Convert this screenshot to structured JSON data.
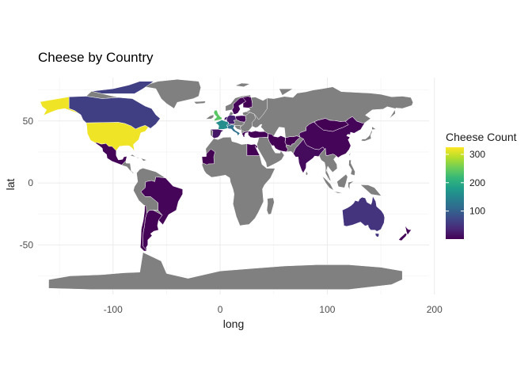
{
  "chart_data": {
    "type": "choropleth map",
    "title": "Cheese by Country",
    "xlabel": "long",
    "ylabel": "lat",
    "xlim": [
      -170,
      195
    ],
    "ylim": [
      -90,
      85
    ],
    "x_ticks": [
      -100,
      0,
      100,
      200
    ],
    "y_ticks": [
      -50,
      0,
      50
    ],
    "x_tick_labels": [
      "-100",
      "0",
      "100",
      "200"
    ],
    "y_tick_labels": [
      "-50",
      "0",
      "50"
    ],
    "grid": true,
    "legend": {
      "title": "Cheese Count",
      "position": "right",
      "min": 1,
      "max": 325,
      "ticks": [
        100,
        200,
        300
      ],
      "tick_labels": [
        "100",
        "200",
        "300"
      ],
      "palette": [
        "#440154",
        "#482878",
        "#3e4989",
        "#31688e",
        "#26828e",
        "#1f9e89",
        "#35b779",
        "#6ece58",
        "#b5de2b",
        "#fde725"
      ]
    },
    "no_data_color": "#808080",
    "countries": [
      {
        "name": "United States",
        "value": 318
      },
      {
        "name": "Canada",
        "value": 62
      },
      {
        "name": "Mexico",
        "value": 4
      },
      {
        "name": "Brazil",
        "value": 6
      },
      {
        "name": "Argentina",
        "value": 3
      },
      {
        "name": "Chile",
        "value": 1
      },
      {
        "name": "France",
        "value": 160
      },
      {
        "name": "Switzerland",
        "value": 134
      },
      {
        "name": "Italy",
        "value": 120
      },
      {
        "name": "United Kingdom",
        "value": 240
      },
      {
        "name": "Germany",
        "value": 30
      },
      {
        "name": "Spain",
        "value": 20
      },
      {
        "name": "Netherlands",
        "value": 26
      },
      {
        "name": "Sweden",
        "value": 5
      },
      {
        "name": "Finland",
        "value": 2
      },
      {
        "name": "Poland",
        "value": 8
      },
      {
        "name": "Greece",
        "value": 5
      },
      {
        "name": "Turkey",
        "value": 3
      },
      {
        "name": "Egypt",
        "value": 2
      },
      {
        "name": "Mauritania",
        "value": 1
      },
      {
        "name": "Iran",
        "value": 2
      },
      {
        "name": "Afghanistan",
        "value": 1
      },
      {
        "name": "India",
        "value": 10
      },
      {
        "name": "China",
        "value": 6
      },
      {
        "name": "Mongolia",
        "value": 2
      },
      {
        "name": "Australia",
        "value": 50
      },
      {
        "name": "New Zealand",
        "value": 6
      }
    ]
  }
}
